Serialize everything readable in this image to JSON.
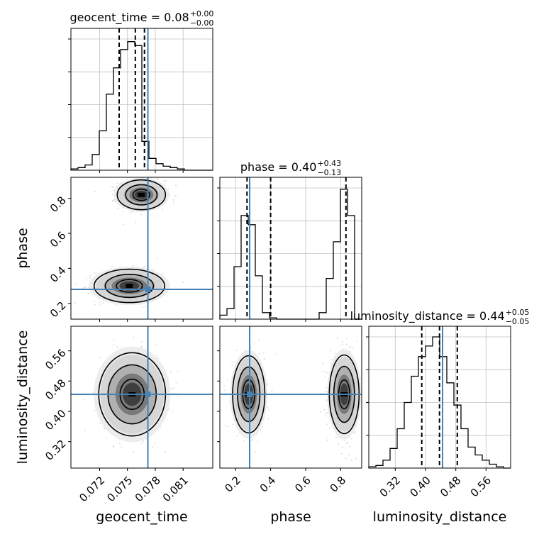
{
  "chart_data": {
    "type": "corner",
    "parameters": [
      "geocent_time",
      "phase",
      "luminosity_distance"
    ],
    "truth": {
      "geocent_time": 0.0772,
      "phase": 0.28,
      "luminosity_distance": 0.445
    },
    "colors": {
      "truth": "#4682b4",
      "hist": "#000000",
      "grid": "#c0c0c0",
      "quantile": "#000000"
    },
    "grid": true,
    "titles": [
      {
        "param": "geocent_time",
        "text": "geocent_time = 0.08",
        "sup": "+0.00",
        "sub": "−0.00"
      },
      {
        "param": "phase",
        "text": "phase = 0.40",
        "sup": "+0.43",
        "sub": "−0.13"
      },
      {
        "param": "luminosity_distance",
        "text": "luminosity_distance = 0.44",
        "sup": "+0.05",
        "sub": "−0.05"
      }
    ],
    "axes": {
      "geocent_time": {
        "label": "geocent_time",
        "range": [
          0.0689,
          0.0842
        ],
        "ticks": [
          0.072,
          0.075,
          0.078,
          0.081
        ],
        "tick_labels": [
          "0.072",
          "0.075",
          "0.078",
          "0.081"
        ]
      },
      "phase": {
        "label": "phase",
        "range": [
          0.11,
          0.92
        ],
        "ticks": [
          0.2,
          0.4,
          0.6,
          0.8
        ],
        "tick_labels": [
          "0.2",
          "0.4",
          "0.6",
          "0.8"
        ]
      },
      "luminosity_distance": {
        "label": "luminosity_distance",
        "range": [
          0.25,
          0.625
        ],
        "ticks": [
          0.32,
          0.4,
          0.48,
          0.56
        ],
        "tick_labels": [
          "0.32",
          "0.40",
          "0.48",
          "0.56"
        ]
      }
    },
    "marginals": {
      "geocent_time": {
        "bin_edges": [
          0.0689,
          0.069665,
          0.07043,
          0.071195,
          0.07196,
          0.072725,
          0.07349,
          0.074255,
          0.07502,
          0.075785,
          0.07655,
          0.077315,
          0.07808,
          0.078845,
          0.07961,
          0.080375,
          0.08114,
          0.081905,
          0.08267,
          0.083435,
          0.0842
        ],
        "counts": [
          0.01,
          0.02,
          0.04,
          0.12,
          0.3,
          0.58,
          0.78,
          0.92,
          0.98,
          0.95,
          0.22,
          0.09,
          0.05,
          0.03,
          0.02,
          0.01,
          0.0,
          0.0,
          0.0,
          0.0
        ],
        "quantiles": [
          0.0741,
          0.07585,
          0.07683
        ]
      },
      "phase": {
        "bin_edges": [
          0.11,
          0.1505,
          0.191,
          0.2315,
          0.272,
          0.3125,
          0.353,
          0.3935,
          0.434,
          0.4745,
          0.515,
          0.5555,
          0.596,
          0.6365,
          0.677,
          0.7175,
          0.758,
          0.7985,
          0.839,
          0.8795,
          0.92
        ],
        "counts": [
          0.03,
          0.08,
          0.4,
          0.79,
          0.72,
          0.33,
          0.05,
          0.01,
          0.0,
          0.0,
          0.0,
          0.0,
          0.0,
          0.0,
          0.05,
          0.31,
          0.59,
          0.99,
          0.79,
          0.0
        ],
        "quantiles": [
          0.265,
          0.4,
          0.83
        ]
      },
      "luminosity_distance": {
        "bin_edges": [
          0.25,
          0.26875,
          0.2875,
          0.30625,
          0.325,
          0.34375,
          0.3625,
          0.38125,
          0.4,
          0.41875,
          0.4375,
          0.45625,
          0.475,
          0.49375,
          0.5125,
          0.53125,
          0.55,
          0.56875,
          0.5875,
          0.60625,
          0.625
        ],
        "counts": [
          0.01,
          0.02,
          0.06,
          0.15,
          0.3,
          0.5,
          0.7,
          0.85,
          0.93,
          1.0,
          0.85,
          0.65,
          0.48,
          0.3,
          0.16,
          0.1,
          0.06,
          0.03,
          0.01,
          0.0
        ],
        "quantiles": [
          0.39,
          0.437,
          0.484
        ]
      }
    },
    "joint": [
      {
        "x": "geocent_time",
        "y": "phase",
        "modes": [
          {
            "cx": 0.0765,
            "cy": 0.82,
            "levels": [
              [
                0.0026,
                0.085
              ],
              [
                0.0017,
                0.058
              ],
              [
                0.0009,
                0.032
              ]
            ]
          },
          {
            "cx": 0.0752,
            "cy": 0.3,
            "levels": [
              [
                0.0038,
                0.095
              ],
              [
                0.0026,
                0.066
              ],
              [
                0.0014,
                0.036
              ]
            ]
          }
        ]
      },
      {
        "x": "geocent_time",
        "y": "luminosity_distance",
        "modes": [
          {
            "cx": 0.0755,
            "cy": 0.445,
            "levels": [
              [
                0.0036,
                0.11
              ],
              [
                0.0026,
                0.078
              ],
              [
                0.0013,
                0.04
              ]
            ]
          }
        ]
      },
      {
        "x": "phase",
        "y": "luminosity_distance",
        "modes": [
          {
            "cx": 0.275,
            "cy": 0.445,
            "levels": [
              [
                0.092,
                0.102
              ],
              [
                0.064,
                0.072
              ],
              [
                0.034,
                0.038
              ]
            ]
          },
          {
            "cx": 0.82,
            "cy": 0.445,
            "levels": [
              [
                0.085,
                0.104
              ],
              [
                0.059,
                0.074
              ],
              [
                0.031,
                0.038
              ]
            ]
          }
        ]
      }
    ]
  }
}
